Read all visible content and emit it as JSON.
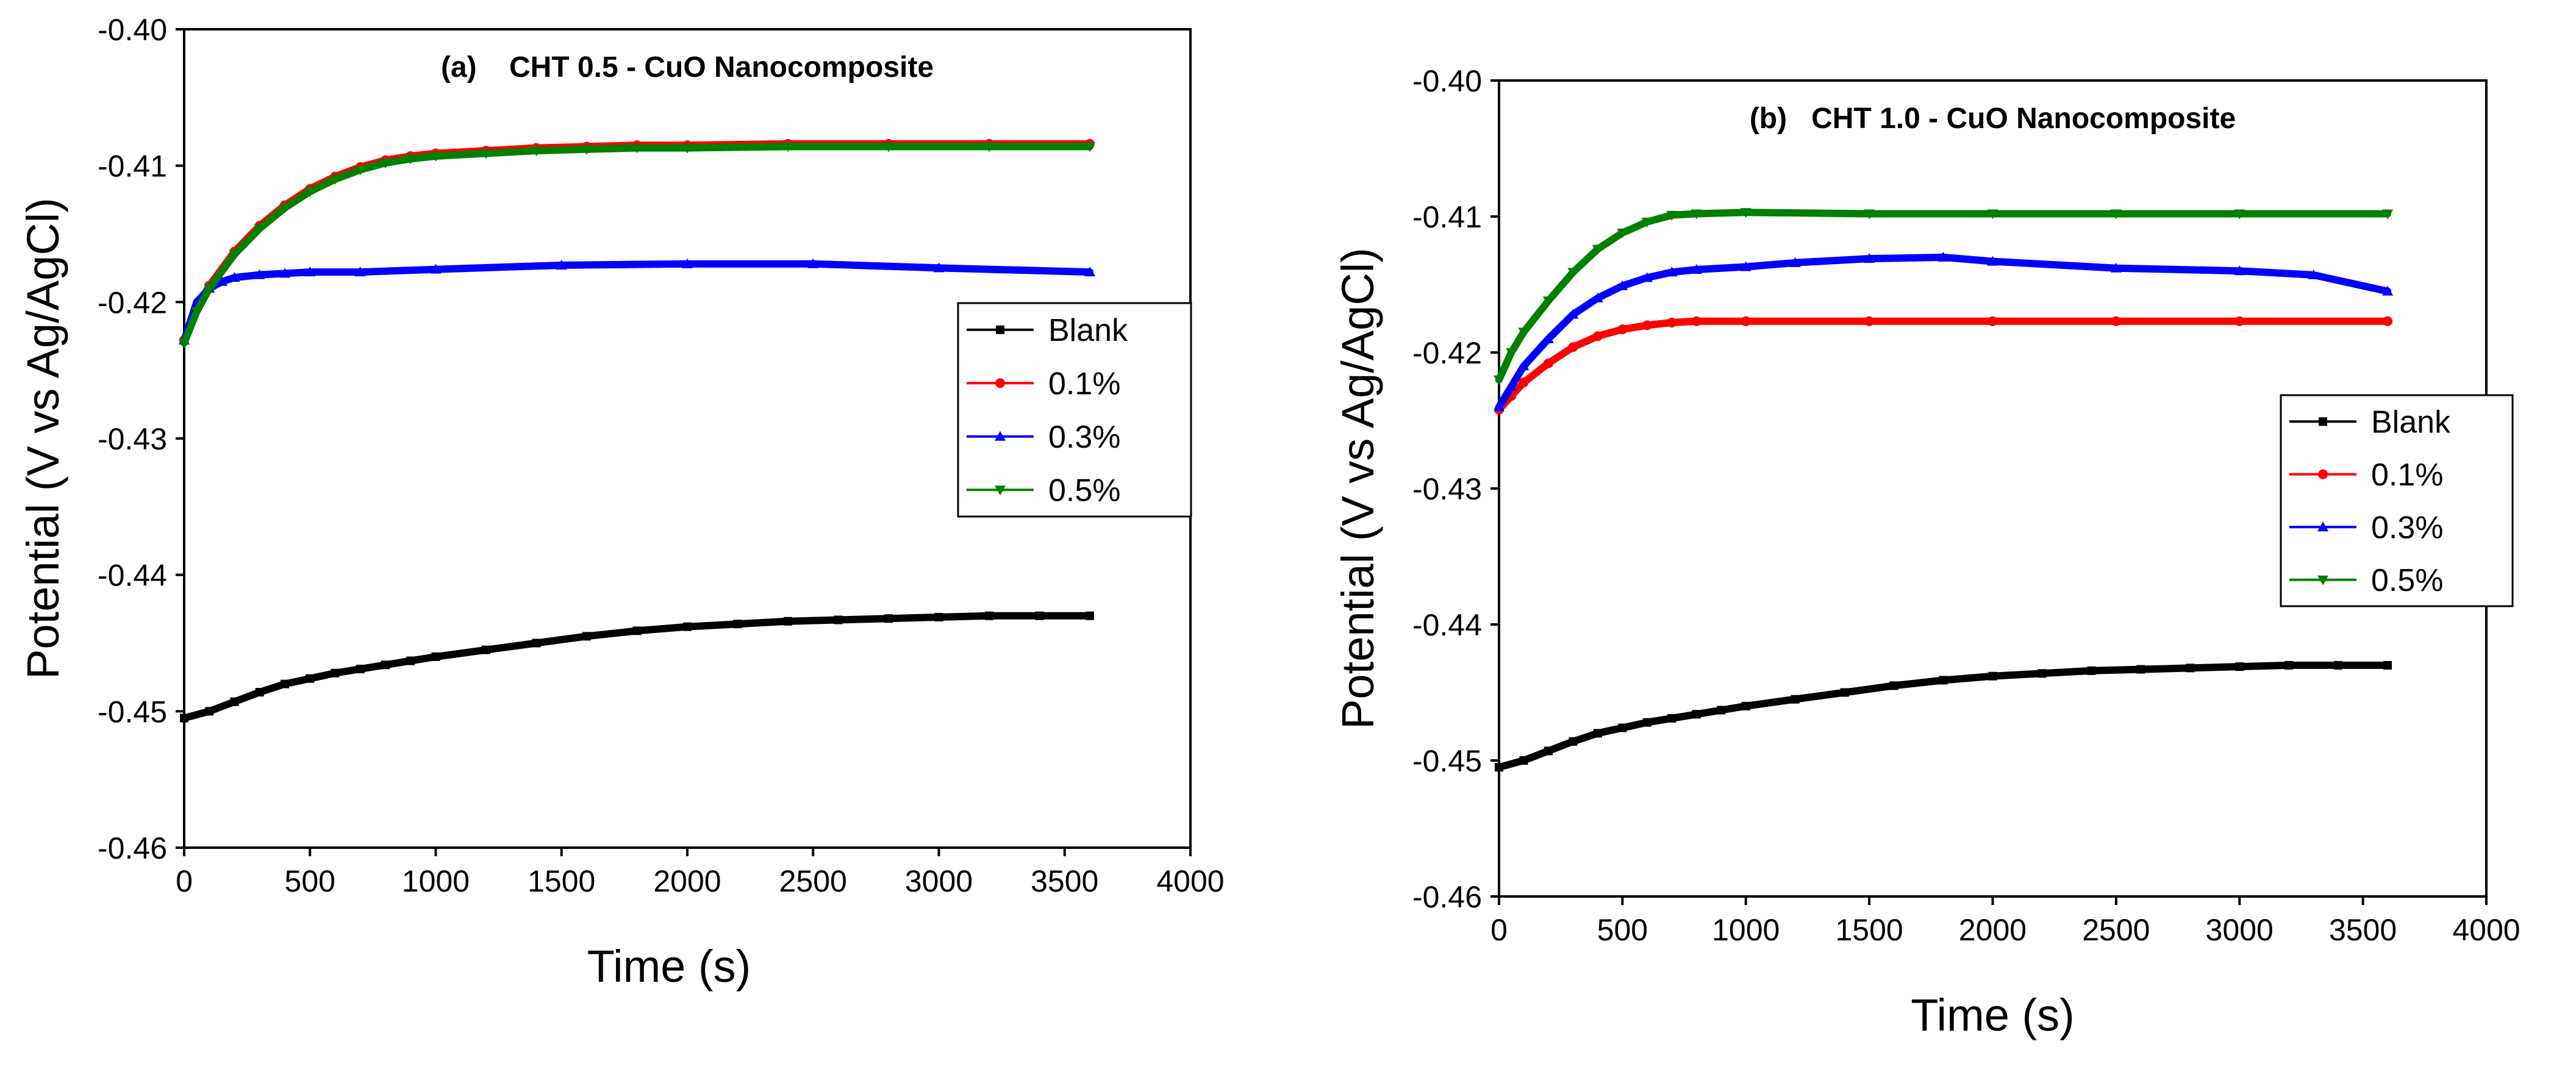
{
  "chart_data": [
    {
      "type": "line",
      "title": "(a)    CHT 0.5 - CuO Nanocomposite",
      "xlabel": "Time (s)",
      "ylabel": "Potential (V vs Ag/AgCl)",
      "xlim": [
        0,
        4000
      ],
      "ylim": [
        -0.46,
        -0.4
      ],
      "xticks": [
        0,
        500,
        1000,
        1500,
        2000,
        2500,
        3000,
        3500,
        4000
      ],
      "yticks": [
        -0.46,
        -0.45,
        -0.44,
        -0.43,
        -0.42,
        -0.41,
        -0.4
      ],
      "ytick_labels": [
        "-0.46",
        "-0.45",
        "-0.44",
        "-0.43",
        "-0.42",
        "-0.41",
        "-0.40"
      ],
      "legend_position": "center-right",
      "series": [
        {
          "name": "Blank",
          "color": "#000000",
          "marker": "square",
          "x": [
            0,
            100,
            200,
            300,
            400,
            500,
            600,
            700,
            800,
            900,
            1000,
            1200,
            1400,
            1600,
            1800,
            2000,
            2200,
            2400,
            2600,
            2800,
            3000,
            3200,
            3400,
            3600
          ],
          "y": [
            -0.4505,
            -0.45,
            -0.4493,
            -0.4486,
            -0.448,
            -0.4476,
            -0.4472,
            -0.4469,
            -0.4466,
            -0.4463,
            -0.446,
            -0.4455,
            -0.445,
            -0.4445,
            -0.4441,
            -0.4438,
            -0.4436,
            -0.4434,
            -0.4433,
            -0.4432,
            -0.4431,
            -0.443,
            -0.443,
            -0.443
          ]
        },
        {
          "name": "0.1%",
          "color": "#ff0000",
          "marker": "circle",
          "x": [
            0,
            50,
            100,
            200,
            300,
            400,
            500,
            600,
            700,
            800,
            900,
            1000,
            1200,
            1400,
            1600,
            1800,
            2000,
            2400,
            2800,
            3200,
            3600
          ],
          "y": [
            -0.4228,
            -0.4205,
            -0.4188,
            -0.4163,
            -0.4144,
            -0.4129,
            -0.4117,
            -0.4108,
            -0.4101,
            -0.4096,
            -0.4093,
            -0.4091,
            -0.4089,
            -0.4087,
            -0.4086,
            -0.4085,
            -0.4085,
            -0.4084,
            -0.4084,
            -0.4084,
            -0.4084
          ]
        },
        {
          "name": "0.3%",
          "color": "#0000ff",
          "marker": "triangle-up",
          "x": [
            0,
            50,
            100,
            150,
            200,
            300,
            400,
            500,
            700,
            1000,
            1500,
            2000,
            2500,
            3000,
            3600
          ],
          "y": [
            -0.4228,
            -0.42,
            -0.419,
            -0.4185,
            -0.4182,
            -0.418,
            -0.4179,
            -0.4178,
            -0.4178,
            -0.4176,
            -0.4173,
            -0.4172,
            -0.4172,
            -0.4175,
            -0.4178
          ]
        },
        {
          "name": "0.5%",
          "color": "#008000",
          "marker": "triangle-down",
          "x": [
            0,
            50,
            100,
            200,
            300,
            400,
            500,
            600,
            700,
            800,
            900,
            1000,
            1200,
            1400,
            1600,
            1800,
            2000,
            2400,
            2800,
            3200,
            3600
          ],
          "y": [
            -0.423,
            -0.4207,
            -0.419,
            -0.4165,
            -0.4146,
            -0.4131,
            -0.4119,
            -0.411,
            -0.4103,
            -0.4098,
            -0.4095,
            -0.4093,
            -0.4091,
            -0.4089,
            -0.4088,
            -0.4087,
            -0.4087,
            -0.4086,
            -0.4086,
            -0.4086,
            -0.4086
          ]
        }
      ]
    },
    {
      "type": "line",
      "title": "(b)   CHT 1.0 - CuO Nanocomposite",
      "xlabel": "Time (s)",
      "ylabel": "Potential (V vs Ag/AgCl)",
      "xlim": [
        0,
        4000
      ],
      "ylim": [
        -0.46,
        -0.4
      ],
      "xticks": [
        0,
        500,
        1000,
        1500,
        2000,
        2500,
        3000,
        3500,
        4000
      ],
      "yticks": [
        -0.46,
        -0.45,
        -0.44,
        -0.43,
        -0.42,
        -0.41,
        -0.4
      ],
      "ytick_labels": [
        "-0.46",
        "-0.45",
        "-0.44",
        "-0.43",
        "-0.42",
        "-0.41",
        "-0.40"
      ],
      "legend_position": "center-right",
      "series": [
        {
          "name": "Blank",
          "color": "#000000",
          "marker": "square",
          "x": [
            0,
            100,
            200,
            300,
            400,
            500,
            600,
            700,
            800,
            900,
            1000,
            1200,
            1400,
            1600,
            1800,
            2000,
            2200,
            2400,
            2600,
            2800,
            3000,
            3200,
            3400,
            3600
          ],
          "y": [
            -0.4505,
            -0.45,
            -0.4493,
            -0.4486,
            -0.448,
            -0.4476,
            -0.4472,
            -0.4469,
            -0.4466,
            -0.4463,
            -0.446,
            -0.4455,
            -0.445,
            -0.4445,
            -0.4441,
            -0.4438,
            -0.4436,
            -0.4434,
            -0.4433,
            -0.4432,
            -0.4431,
            -0.443,
            -0.443,
            -0.443
          ]
        },
        {
          "name": "0.1%",
          "color": "#ff0000",
          "marker": "circle",
          "x": [
            0,
            50,
            100,
            200,
            300,
            400,
            500,
            600,
            700,
            800,
            1000,
            1500,
            2000,
            2500,
            3000,
            3600
          ],
          "y": [
            -0.4242,
            -0.4232,
            -0.4222,
            -0.4208,
            -0.4196,
            -0.4188,
            -0.4183,
            -0.418,
            -0.4178,
            -0.4177,
            -0.4177,
            -0.4177,
            -0.4177,
            -0.4177,
            -0.4177,
            -0.4177
          ]
        },
        {
          "name": "0.3%",
          "color": "#0000ff",
          "marker": "triangle-up",
          "x": [
            0,
            50,
            100,
            200,
            300,
            400,
            500,
            600,
            700,
            800,
            1000,
            1200,
            1500,
            1800,
            2000,
            2500,
            3000,
            3300,
            3600
          ],
          "y": [
            -0.424,
            -0.4225,
            -0.421,
            -0.419,
            -0.4172,
            -0.416,
            -0.4151,
            -0.4145,
            -0.4141,
            -0.4139,
            -0.4137,
            -0.4134,
            -0.4131,
            -0.413,
            -0.4133,
            -0.4138,
            -0.414,
            -0.4143,
            -0.4155
          ]
        },
        {
          "name": "0.5%",
          "color": "#008000",
          "marker": "triangle-down",
          "x": [
            0,
            50,
            100,
            200,
            300,
            400,
            500,
            600,
            700,
            800,
            1000,
            1500,
            2000,
            2500,
            3000,
            3600
          ],
          "y": [
            -0.422,
            -0.42,
            -0.4185,
            -0.4162,
            -0.4141,
            -0.4124,
            -0.4112,
            -0.4104,
            -0.4099,
            -0.4098,
            -0.4097,
            -0.4098,
            -0.4098,
            -0.4098,
            -0.4098,
            -0.4098
          ]
        }
      ]
    }
  ]
}
